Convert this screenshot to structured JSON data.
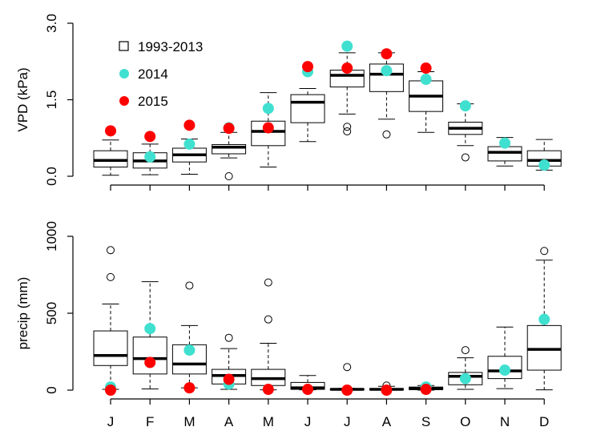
{
  "chart_data": [
    {
      "type": "box",
      "id": "vpd",
      "ylabel": "VPD (kPa)",
      "ylim": [
        0,
        3
      ],
      "yticks": [
        "0.0",
        "1.5",
        "3.0"
      ],
      "ytick_values": [
        0,
        1.5,
        3
      ],
      "categories": [
        "J",
        "F",
        "M",
        "A",
        "M",
        "J",
        "J",
        "A",
        "S",
        "O",
        "N",
        "D"
      ],
      "legend": {
        "placement": "top-left",
        "entries": [
          {
            "label": "1993-2013",
            "marker": "open-square",
            "color": "#000000"
          },
          {
            "label": "2014",
            "marker": "filled-circle",
            "color": "#40E0D0"
          },
          {
            "label": "2015",
            "marker": "filled-circle",
            "color": "#FF0000"
          }
        ]
      },
      "boxes": [
        {
          "low": 0.02,
          "q1": 0.18,
          "median": 0.31,
          "q3": 0.5,
          "high": 0.71,
          "outliers": []
        },
        {
          "low": 0.03,
          "q1": 0.16,
          "median": 0.3,
          "q3": 0.46,
          "high": 0.63,
          "outliers": []
        },
        {
          "low": 0.04,
          "q1": 0.28,
          "median": 0.42,
          "q3": 0.55,
          "high": 0.73,
          "outliers": []
        },
        {
          "low": 0.36,
          "q1": 0.44,
          "median": 0.57,
          "q3": 0.62,
          "high": 0.86,
          "outliers": [
            0.0
          ]
        },
        {
          "low": 0.18,
          "q1": 0.6,
          "median": 0.88,
          "q3": 1.08,
          "high": 1.64,
          "outliers": []
        },
        {
          "low": 0.68,
          "q1": 1.05,
          "median": 1.45,
          "q3": 1.6,
          "high": 1.72,
          "outliers": []
        },
        {
          "low": 1.22,
          "q1": 1.75,
          "median": 1.98,
          "q3": 2.08,
          "high": 2.42,
          "outliers": [
            0.88,
            0.97
          ]
        },
        {
          "low": 1.12,
          "q1": 1.66,
          "median": 2.0,
          "q3": 2.2,
          "high": 2.42,
          "outliers": [
            0.82
          ]
        },
        {
          "low": 0.86,
          "q1": 1.27,
          "median": 1.57,
          "q3": 1.87,
          "high": 2.05,
          "outliers": []
        },
        {
          "low": 0.6,
          "q1": 0.82,
          "median": 0.94,
          "q3": 1.06,
          "high": 1.42,
          "outliers": [
            0.37
          ]
        },
        {
          "low": 0.2,
          "q1": 0.3,
          "median": 0.47,
          "q3": 0.58,
          "high": 0.76,
          "outliers": []
        },
        {
          "low": 0.12,
          "q1": 0.2,
          "median": 0.31,
          "q3": 0.5,
          "high": 0.72,
          "outliers": []
        }
      ],
      "series": [
        {
          "name": "2014",
          "color": "#40E0D0",
          "values": [
            null,
            0.38,
            0.63,
            0.95,
            1.33,
            2.05,
            2.55,
            2.07,
            1.9,
            1.38,
            0.65,
            0.22
          ]
        },
        {
          "name": "2015",
          "color": "#FF0000",
          "values": [
            0.89,
            0.78,
            1.0,
            0.94,
            0.95,
            2.15,
            2.12,
            2.4,
            2.12,
            null,
            null,
            null
          ]
        }
      ]
    },
    {
      "type": "box",
      "id": "precip",
      "ylabel": "precip (mm)",
      "ylim": [
        0,
        1000
      ],
      "yticks": [
        "0",
        "500",
        "1000"
      ],
      "ytick_values": [
        0,
        500,
        1000
      ],
      "categories": [
        "J",
        "F",
        "M",
        "A",
        "M",
        "J",
        "J",
        "A",
        "S",
        "O",
        "N",
        "D"
      ],
      "boxes": [
        {
          "low": 5,
          "q1": 160,
          "median": 225,
          "q3": 385,
          "high": 560,
          "outliers": [
            735,
            910
          ]
        },
        {
          "low": 8,
          "q1": 105,
          "median": 205,
          "q3": 345,
          "high": 705,
          "outliers": []
        },
        {
          "low": 15,
          "q1": 105,
          "median": 170,
          "q3": 295,
          "high": 420,
          "outliers": [
            680
          ]
        },
        {
          "low": 5,
          "q1": 40,
          "median": 95,
          "q3": 135,
          "high": 270,
          "outliers": [
            340
          ]
        },
        {
          "low": 2,
          "q1": 30,
          "median": 75,
          "q3": 135,
          "high": 305,
          "outliers": [
            460,
            700
          ]
        },
        {
          "low": 2,
          "q1": 5,
          "median": 15,
          "q3": 50,
          "high": 95,
          "outliers": []
        },
        {
          "low": 0,
          "q1": 2,
          "median": 5,
          "q3": 8,
          "high": 12,
          "outliers": [
            150
          ]
        },
        {
          "low": 0,
          "q1": 2,
          "median": 5,
          "q3": 10,
          "high": 25,
          "outliers": [
            30
          ]
        },
        {
          "low": 0,
          "q1": 3,
          "median": 10,
          "q3": 20,
          "high": 30,
          "outliers": []
        },
        {
          "low": 5,
          "q1": 35,
          "median": 90,
          "q3": 115,
          "high": 210,
          "outliers": [
            260
          ]
        },
        {
          "low": 10,
          "q1": 75,
          "median": 125,
          "q3": 220,
          "high": 410,
          "outliers": []
        },
        {
          "low": 2,
          "q1": 130,
          "median": 265,
          "q3": 420,
          "high": 845,
          "outliers": [
            905
          ]
        }
      ],
      "series": [
        {
          "name": "2014",
          "color": "#40E0D0",
          "values": [
            20,
            400,
            260,
            40,
            null,
            null,
            null,
            null,
            20,
            75,
            130,
            460
          ]
        },
        {
          "name": "2015",
          "color": "#FF0000",
          "values": [
            0,
            180,
            15,
            70,
            5,
            5,
            0,
            0,
            5,
            null,
            null,
            null
          ]
        }
      ]
    }
  ]
}
